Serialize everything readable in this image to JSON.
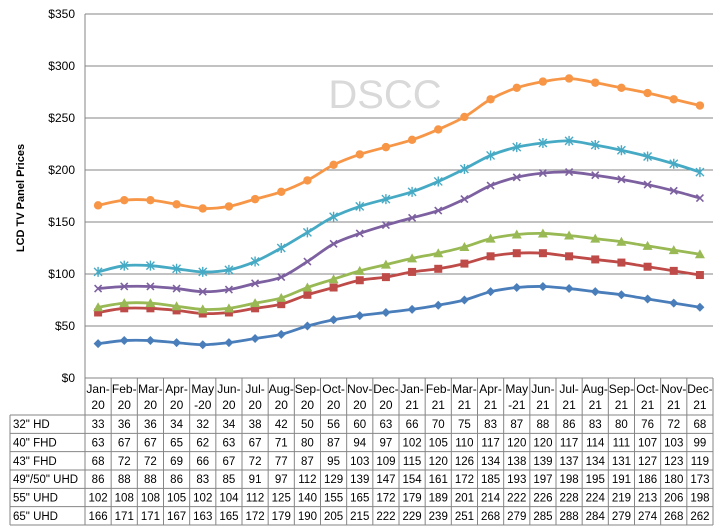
{
  "chart_data": {
    "type": "line",
    "ylabel": "LCD TV Panel Prices",
    "watermark": "DSCC",
    "ylim": [
      0,
      350
    ],
    "y_ticks": [
      "$0",
      "$50",
      "$100",
      "$150",
      "$200",
      "$250",
      "$300",
      "$350"
    ],
    "categories": [
      "Jan-20",
      "Feb-20",
      "Mar-20",
      "Apr-20",
      "May-20",
      "Jun-20",
      "Jul-20",
      "Aug-20",
      "Sep-20",
      "Oct-20",
      "Nov-20",
      "Dec-20",
      "Jan-21",
      "Feb-21",
      "Mar-21",
      "Apr-21",
      "May-21",
      "Jun-21",
      "Jul-21",
      "Aug-21",
      "Sep-21",
      "Oct-21",
      "Nov-21",
      "Dec-21"
    ],
    "category_labels": [
      [
        "Jan-",
        "20"
      ],
      [
        "Feb-",
        "20"
      ],
      [
        "Mar-",
        "20"
      ],
      [
        "Apr-",
        "20"
      ],
      [
        "May",
        "-20"
      ],
      [
        "Jun-",
        "20"
      ],
      [
        "Jul-",
        "20"
      ],
      [
        "Aug-",
        "20"
      ],
      [
        "Sep-",
        "20"
      ],
      [
        "Oct-",
        "20"
      ],
      [
        "Nov-",
        "20"
      ],
      [
        "Dec-",
        "20"
      ],
      [
        "Jan-",
        "21"
      ],
      [
        "Feb-",
        "21"
      ],
      [
        "Mar-",
        "21"
      ],
      [
        "Apr-",
        "21"
      ],
      [
        "May",
        "-21"
      ],
      [
        "Jun-",
        "21"
      ],
      [
        "Jul-",
        "21"
      ],
      [
        "Aug-",
        "21"
      ],
      [
        "Sep-",
        "21"
      ],
      [
        "Oct-",
        "21"
      ],
      [
        "Nov-",
        "21"
      ],
      [
        "Dec-",
        "21"
      ]
    ],
    "grid": true,
    "legend": "data table below chart",
    "series": [
      {
        "name": "32\" HD",
        "color": "#4a7ebb",
        "marker": "diamond",
        "values": [
          33,
          36,
          36,
          34,
          32,
          34,
          38,
          42,
          50,
          56,
          60,
          63,
          66,
          70,
          75,
          83,
          87,
          88,
          86,
          83,
          80,
          76,
          72,
          68
        ]
      },
      {
        "name": "40\" FHD",
        "color": "#be4b48",
        "marker": "square",
        "values": [
          63,
          67,
          67,
          65,
          62,
          63,
          67,
          71,
          80,
          87,
          94,
          97,
          102,
          105,
          110,
          117,
          120,
          120,
          117,
          114,
          111,
          107,
          103,
          99
        ]
      },
      {
        "name": "43\" FHD",
        "color": "#98b954",
        "marker": "triangle",
        "values": [
          68,
          72,
          72,
          69,
          66,
          67,
          72,
          77,
          87,
          95,
          103,
          109,
          115,
          120,
          126,
          134,
          138,
          139,
          137,
          134,
          131,
          127,
          123,
          119
        ]
      },
      {
        "name": "49\"/50\" UHD",
        "color": "#7d60a0",
        "marker": "x",
        "values": [
          86,
          88,
          88,
          86,
          83,
          85,
          91,
          97,
          112,
          129,
          139,
          147,
          154,
          161,
          172,
          185,
          193,
          197,
          198,
          195,
          191,
          186,
          180,
          173
        ]
      },
      {
        "name": "55\" UHD",
        "color": "#46aac5",
        "marker": "star",
        "values": [
          102,
          108,
          108,
          105,
          102,
          104,
          112,
          125,
          140,
          155,
          165,
          172,
          179,
          189,
          201,
          214,
          222,
          226,
          228,
          224,
          219,
          213,
          206,
          198
        ]
      },
      {
        "name": "65\" UHD",
        "color": "#f79646",
        "marker": "circle",
        "values": [
          166,
          171,
          171,
          167,
          163,
          165,
          172,
          179,
          190,
          205,
          215,
          222,
          229,
          239,
          251,
          268,
          279,
          285,
          288,
          284,
          279,
          274,
          268,
          262
        ]
      }
    ]
  }
}
